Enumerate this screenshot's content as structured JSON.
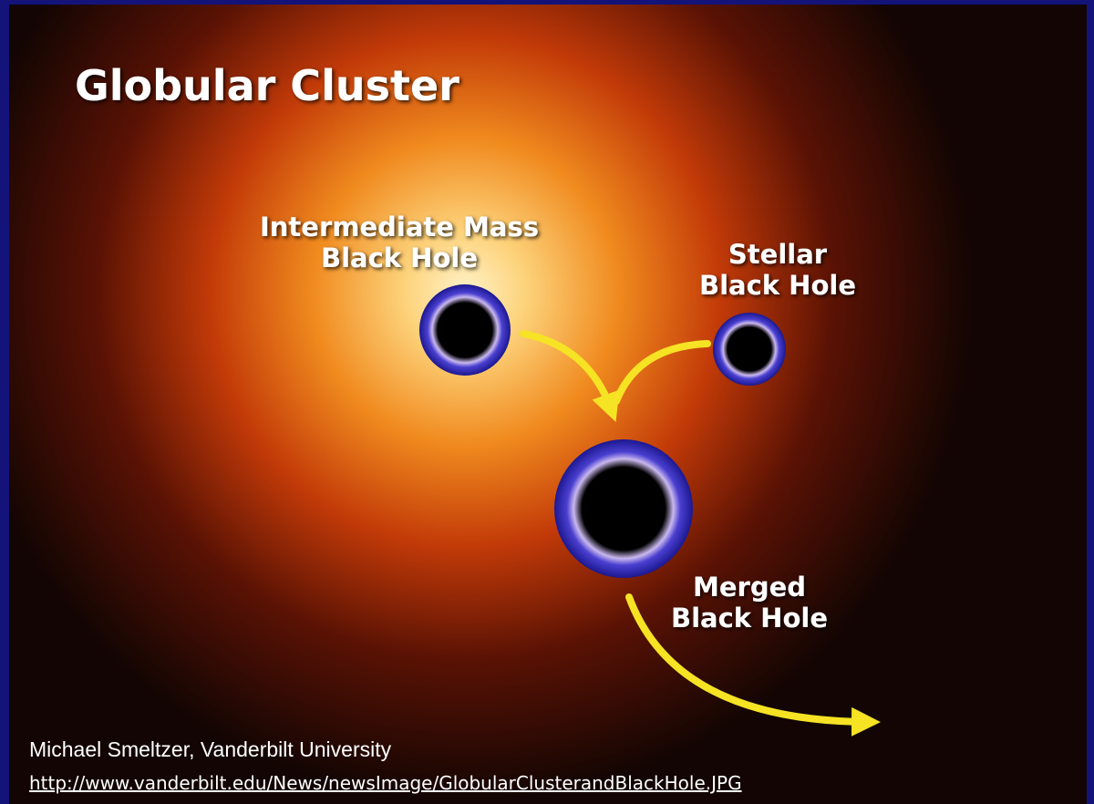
{
  "title": "Globular Cluster",
  "labels": {
    "intermediate": [
      "Intermediate Mass",
      "Black Hole"
    ],
    "stellar": [
      "Stellar",
      "Black Hole"
    ],
    "merged": [
      "Merged",
      "Black Hole"
    ]
  },
  "credit": {
    "author": "Michael Smeltzer, Vanderbilt University",
    "url": "http://www.vanderbilt.edu/News/newsImage/GlobularClusterandBlackHole.JPG"
  }
}
